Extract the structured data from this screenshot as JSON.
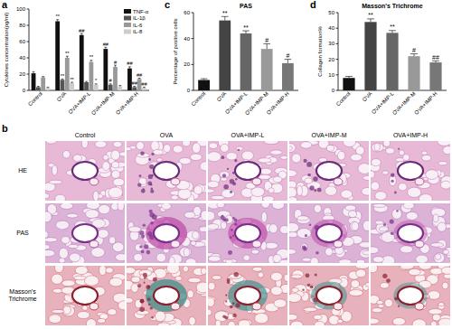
{
  "chart_data": [
    {
      "type": "bar",
      "panel": "a",
      "y_label": "Cytokines concentration(pg/ml)",
      "categories": [
        "Control",
        "OVA",
        "OVA+IMP-L",
        "OVA+IMP-M",
        "OVA+IMP-H"
      ],
      "series": [
        {
          "name": "TNF-α",
          "color": "#111111",
          "values": [
            21,
            85,
            68,
            51,
            27
          ],
          "errors": [
            2,
            2,
            2,
            2,
            2
          ],
          "significance": [
            null,
            "**",
            "##",
            "##",
            "##"
          ]
        },
        {
          "name": "IL-1β",
          "color": "#555555",
          "values": [
            4,
            13,
            10,
            7,
            4
          ],
          "errors": [
            1,
            1,
            1,
            1,
            1
          ],
          "significance": [
            null,
            "**",
            null,
            "#",
            "##"
          ]
        },
        {
          "name": "IL-6",
          "color": "#999999",
          "values": [
            16,
            40,
            35,
            29,
            14
          ],
          "errors": [
            1,
            2,
            2,
            2,
            1
          ],
          "significance": [
            null,
            "**",
            "**",
            "#",
            "##"
          ]
        },
        {
          "name": "IL-8",
          "color": "#cccccc",
          "values": [
            3,
            9,
            7,
            5,
            3
          ],
          "errors": [
            1,
            1,
            1,
            1,
            1
          ],
          "significance": [
            null,
            "**",
            "*",
            null,
            "##"
          ]
        }
      ],
      "ylim": [
        0,
        100
      ],
      "yticks": [
        0,
        20,
        40,
        60,
        80,
        100
      ],
      "legend": "upper right"
    },
    {
      "type": "bar",
      "panel": "c",
      "title": "PAS",
      "y_label": "Percentage of positive cells",
      "categories": [
        "Control",
        "OVA",
        "OVA+IMP-L",
        "OVA+IMP-M",
        "OVA+IMP-H"
      ],
      "values": [
        8,
        54,
        44,
        32,
        21
      ],
      "errors": [
        1,
        3,
        2,
        4,
        3
      ],
      "colors": [
        "#111111",
        "#444444",
        "#666666",
        "#999999",
        "#777777"
      ],
      "significance": [
        null,
        "**",
        "**",
        "#",
        "#"
      ],
      "ylim": [
        0,
        60
      ],
      "yticks": [
        0,
        20,
        40,
        60
      ]
    },
    {
      "type": "bar",
      "panel": "d",
      "title": "Masson's Trichrome",
      "y_label": "Collagen formation%",
      "categories": [
        "Control",
        "OVA",
        "OVA+IMP-L",
        "OVA+IMP-M",
        "OVA+IMP-H"
      ],
      "values": [
        8,
        44,
        37,
        22,
        18
      ],
      "errors": [
        1,
        2,
        1.5,
        1.5,
        1
      ],
      "colors": [
        "#111111",
        "#444444",
        "#666666",
        "#999999",
        "#777777"
      ],
      "significance": [
        null,
        "**",
        "**",
        "#",
        "##"
      ],
      "ylim": [
        0,
        50
      ],
      "yticks": [
        0,
        10,
        20,
        30,
        40,
        50
      ]
    }
  ],
  "image_panel": {
    "panel": "b",
    "columns": [
      "Control",
      "OVA",
      "OVA+IMP-L",
      "OVA+IMP-M",
      "OVA+IMP-H"
    ],
    "rows": [
      "HE",
      "PAS",
      "Masson's Trichrome"
    ]
  }
}
